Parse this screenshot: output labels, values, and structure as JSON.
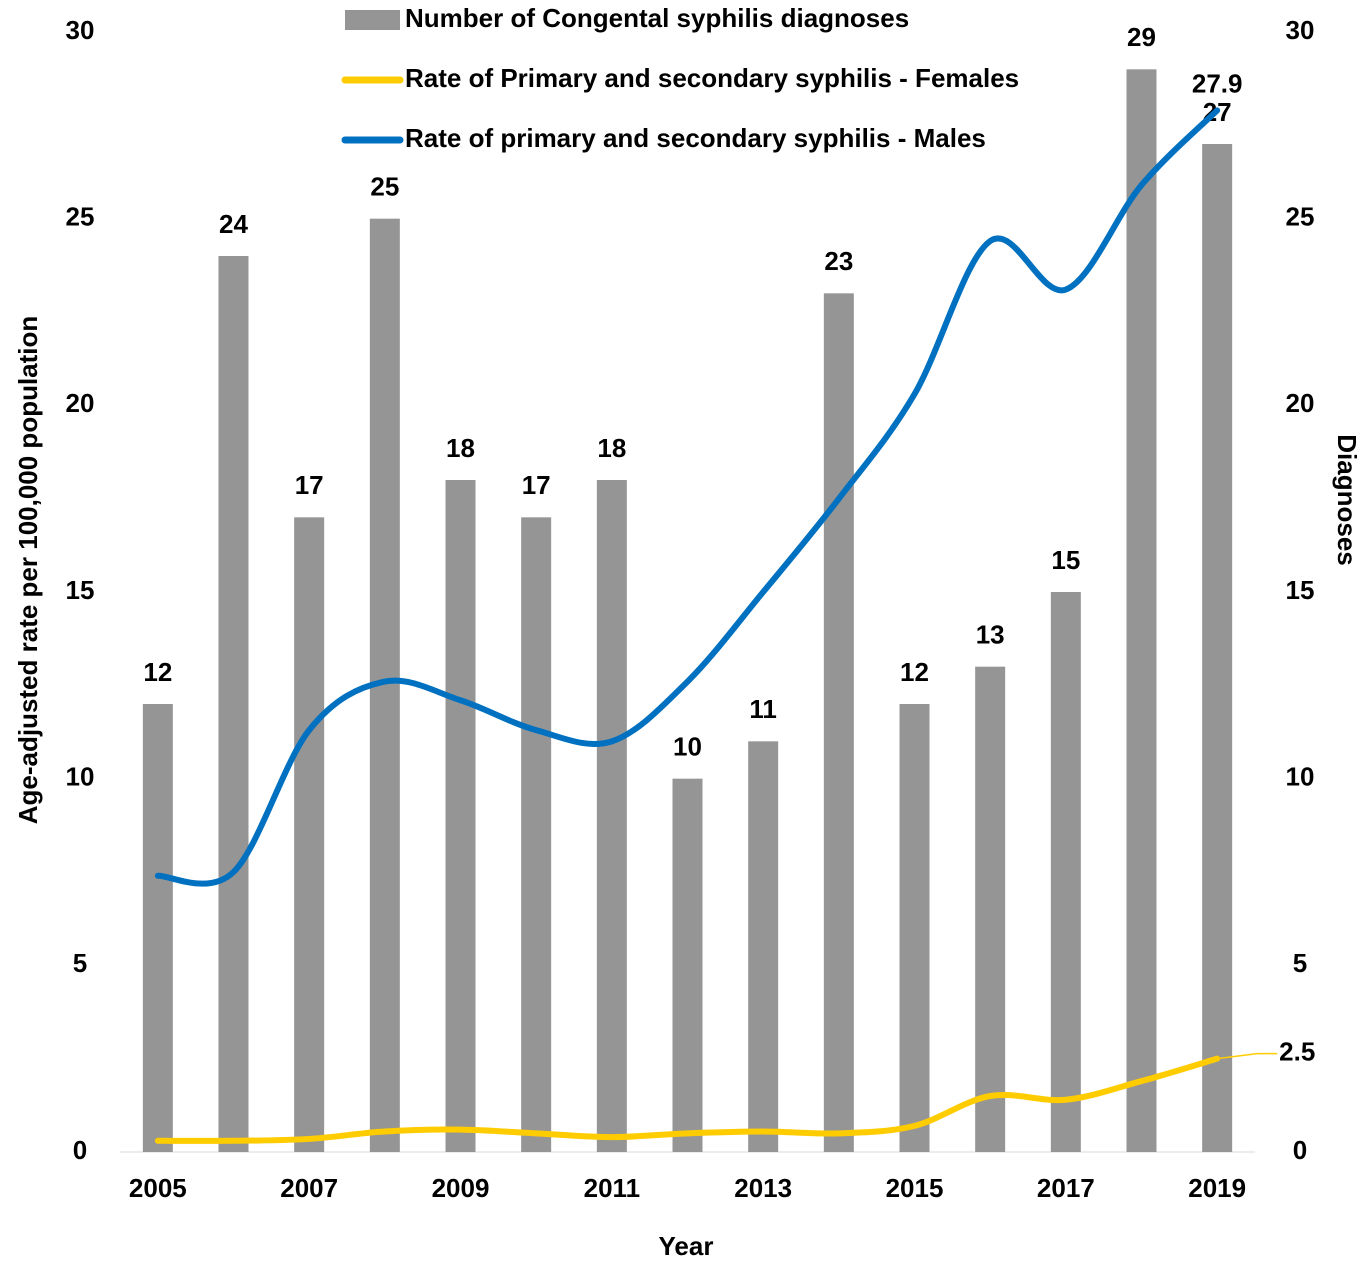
{
  "chart_data": {
    "type": "bar_line",
    "xlabel": "Year",
    "ylabel": "Age-adjusted rate per 100,000 population",
    "y2label": "Diagnoses",
    "categories": [
      "2005",
      null,
      "2007",
      null,
      "2009",
      null,
      "2011",
      null,
      "2013",
      null,
      "2015",
      null,
      "2017",
      null,
      "2019"
    ],
    "series": [
      {
        "name": "Number of Congental syphilis diagnoses",
        "type": "bar",
        "axis": "y2",
        "color": "#959595",
        "values": [
          12,
          24,
          17,
          25,
          18,
          17,
          18,
          10,
          11,
          23,
          12,
          13,
          15,
          29,
          27
        ]
      },
      {
        "name": "Rate of Primary and secondary syphilis  - Females",
        "type": "line",
        "color": "#ffcc00",
        "values": [
          0.3,
          0.3,
          0.35,
          0.55,
          0.6,
          0.5,
          0.4,
          0.5,
          0.55,
          0.5,
          0.7,
          1.5,
          1.4,
          1.9,
          2.5
        ]
      },
      {
        "name": "Rate of primary and secondary syphilis - Males",
        "type": "line",
        "color": "#0070c0",
        "values": [
          7.4,
          7.5,
          11.3,
          12.6,
          12.1,
          11.3,
          11.0,
          12.6,
          15.0,
          17.5,
          20.3,
          24.4,
          23.1,
          25.9,
          27.9
        ]
      }
    ],
    "ylim": [
      0,
      30
    ],
    "yticks": [
      0,
      5,
      10,
      15,
      20,
      25,
      30
    ],
    "y2lim": [
      0,
      30
    ],
    "y2ticks": [
      0,
      5,
      10,
      15,
      20,
      25,
      30
    ]
  }
}
